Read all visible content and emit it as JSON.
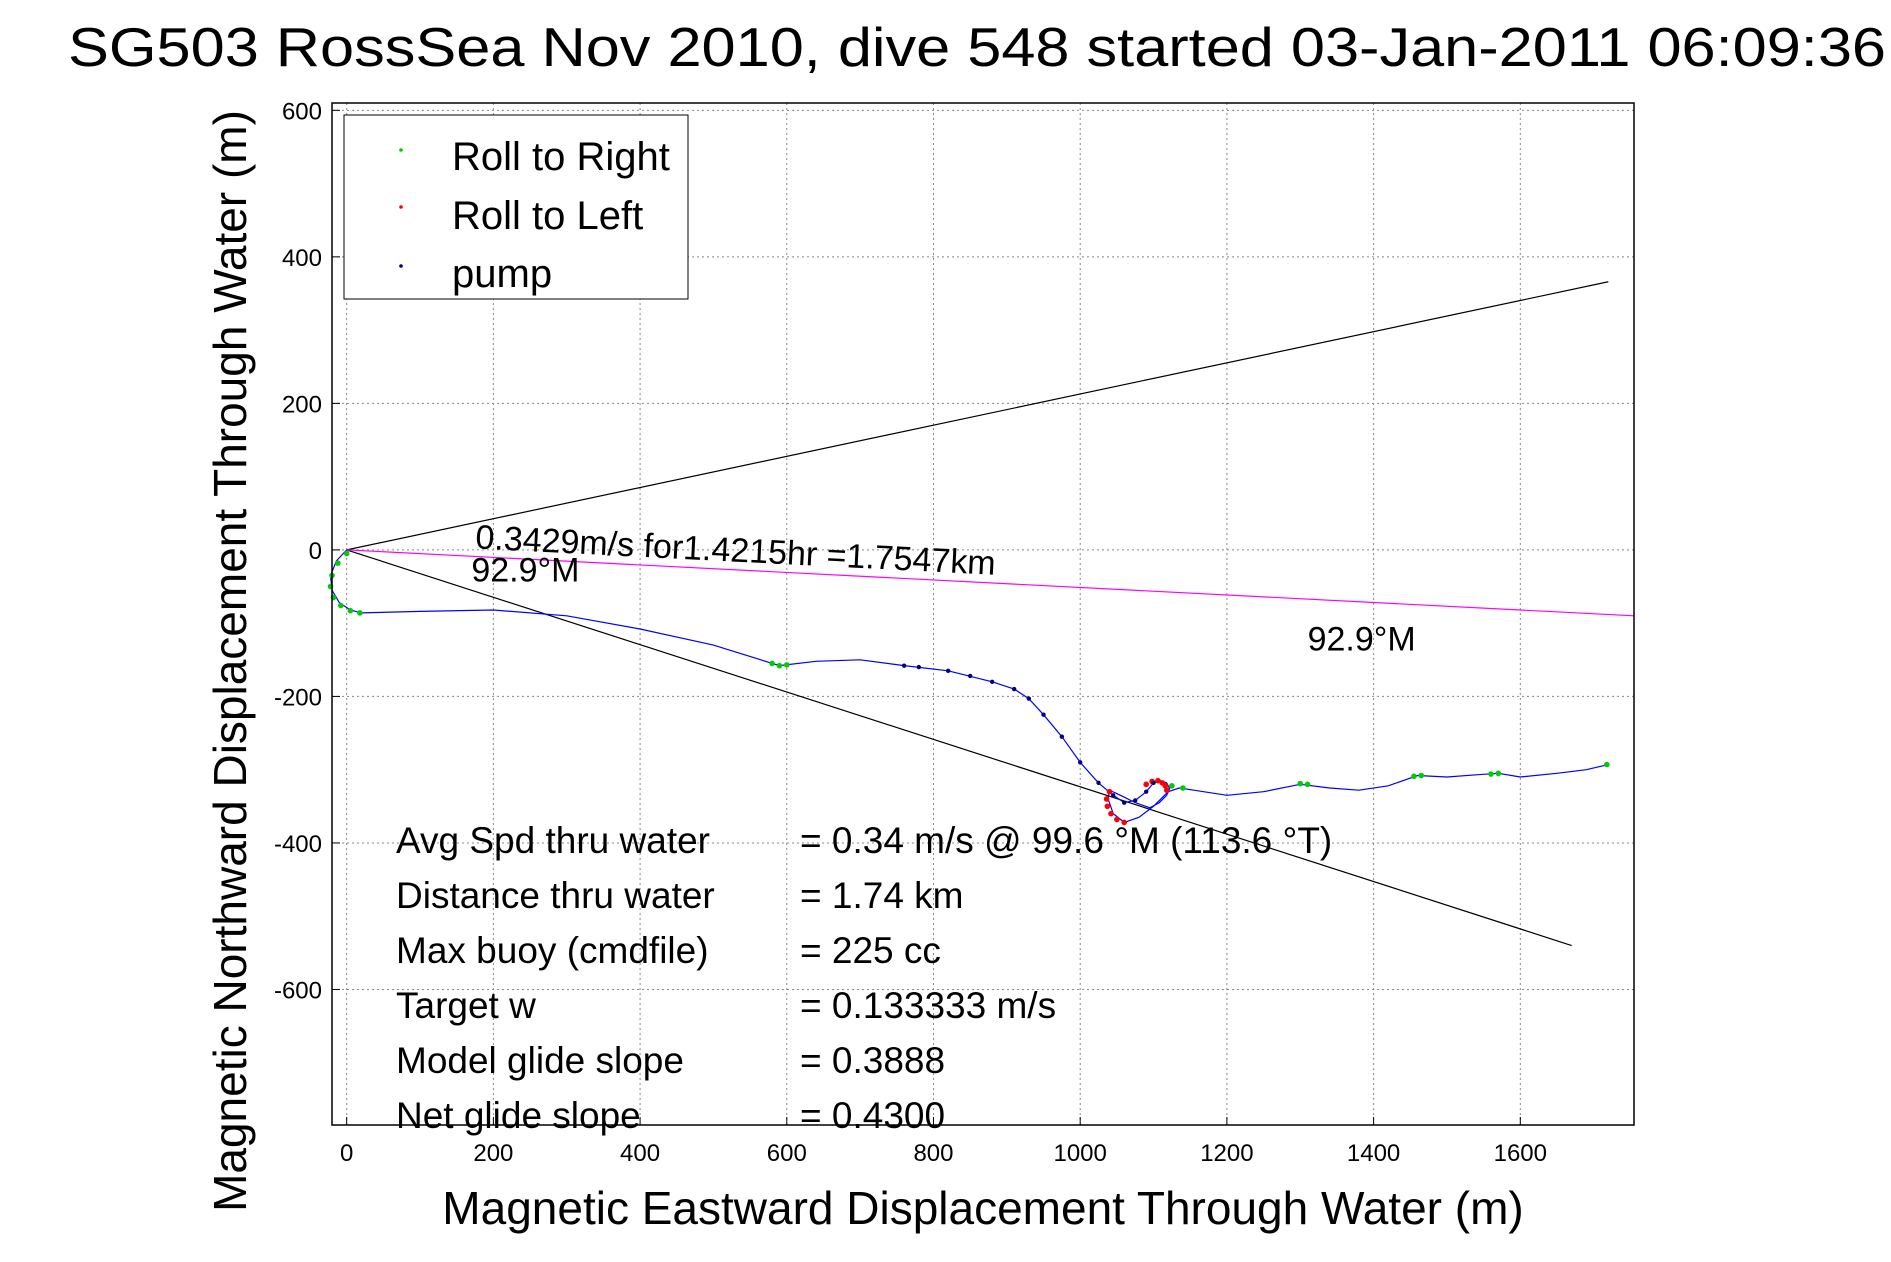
{
  "chart_data": {
    "type": "scatter",
    "title": "SG503 RossSea Nov 2010, dive 548 started 03-Jan-2011 06:09:36",
    "xlabel": "Magnetic Eastward Displacement Through Water (m)",
    "ylabel": "Magnetic Northward Displacement Through Water (m)",
    "xlim": [
      -20,
      1755
    ],
    "ylim": [
      -785,
      610
    ],
    "x_ticks": [
      0,
      200,
      400,
      600,
      800,
      1000,
      1200,
      1400,
      1600
    ],
    "y_ticks": [
      600,
      400,
      200,
      0,
      -200,
      -400,
      -600
    ],
    "grid": true,
    "legend": {
      "placement": "top-left",
      "entries": [
        {
          "label": "Roll to Right",
          "color": "#00cc00"
        },
        {
          "label": "Roll to Left",
          "color": "#ff0000"
        },
        {
          "label": "pump",
          "color": "#000080"
        }
      ]
    },
    "track": {
      "color": "#0000ff",
      "x": [
        0,
        -14,
        -22,
        -20,
        -10,
        5,
        20,
        100,
        200,
        300,
        400,
        500,
        590,
        640,
        700,
        760,
        820,
        880,
        910,
        930,
        950,
        975,
        1000,
        1025,
        1045,
        1060,
        1075,
        1090,
        1100,
        1110,
        1118,
        1122,
        1118,
        1108,
        1095,
        1075,
        1055,
        1040,
        1038,
        1045,
        1060,
        1080,
        1100,
        1120,
        1135,
        1155,
        1200,
        1250,
        1300,
        1340,
        1380,
        1420,
        1460,
        1500,
        1540,
        1570,
        1600,
        1650,
        1690,
        1720
      ],
      "y": [
        0,
        -15,
        -35,
        -55,
        -72,
        -82,
        -86,
        -84,
        -82,
        -90,
        -108,
        -130,
        -158,
        -152,
        -150,
        -158,
        -165,
        -180,
        -190,
        -203,
        -225,
        -255,
        -290,
        -318,
        -335,
        -345,
        -342,
        -330,
        -318,
        -315,
        -318,
        -326,
        -335,
        -345,
        -352,
        -345,
        -335,
        -328,
        -340,
        -360,
        -372,
        -365,
        -350,
        -330,
        -325,
        -328,
        -335,
        -330,
        -320,
        -325,
        -328,
        -322,
        -308,
        -310,
        -307,
        -305,
        -310,
        -305,
        -300,
        -293
      ]
    },
    "roll_right_points": {
      "color": "#00cc00",
      "x": [
        0,
        -12,
        -20,
        -22,
        -18,
        -8,
        5,
        18,
        580,
        590,
        600,
        1125,
        1140,
        1300,
        1310,
        1455,
        1465,
        1560,
        1570,
        1718
      ],
      "y": [
        -5,
        -18,
        -35,
        -50,
        -65,
        -76,
        -83,
        -86,
        -155,
        -158,
        -157,
        -322,
        -325,
        -319,
        -320,
        -309,
        -308,
        -306,
        -305,
        -293
      ]
    },
    "roll_left_points": {
      "color": "#ff0000",
      "x": [
        1040,
        1036,
        1037,
        1042,
        1050,
        1060,
        1090,
        1098,
        1106,
        1112,
        1116,
        1118
      ],
      "y": [
        -330,
        -340,
        -350,
        -360,
        -368,
        -372,
        -320,
        -316,
        -315,
        -318,
        -322,
        -328
      ],
      "note_color_secondary": "#800040"
    },
    "pump_points": {
      "color": "#000080",
      "x": [
        760,
        780,
        820,
        850,
        880,
        910,
        930,
        950,
        975,
        1000,
        1025,
        1045,
        1060,
        1075,
        1090,
        1100
      ],
      "y": [
        -158,
        -160,
        -165,
        -172,
        -180,
        -190,
        -203,
        -225,
        -255,
        -290,
        -318,
        -335,
        -345,
        -342,
        -330,
        -318
      ]
    },
    "lines": [
      {
        "color": "#000000",
        "x": [
          0,
          1720
        ],
        "y": [
          0,
          366
        ]
      },
      {
        "color": "#000000",
        "x": [
          0,
          1670
        ],
        "y": [
          0,
          -540
        ]
      },
      {
        "color": "#ff00ff",
        "x": [
          0,
          1755
        ],
        "y": [
          0,
          -90
        ]
      }
    ],
    "annotations": [
      {
        "id": "speed",
        "text": "0.3429m/s for1.4215hr =1.7547km",
        "x": 175,
        "y": 2,
        "rotate": 2.9
      },
      {
        "id": "heading1",
        "text": "92.9°M",
        "x": 170,
        "y": -43,
        "rotate": 0
      },
      {
        "id": "heading2",
        "text": "92.9°M",
        "x": 1310,
        "y": -137,
        "rotate": 0
      }
    ],
    "stats": [
      {
        "label": "Avg Spd thru water",
        "value": "=  0.34 m/s @  99.6 °M (113.6 °T)"
      },
      {
        "label": "Distance thru water",
        "value": "=  1.74 km"
      },
      {
        "label": "Max buoy (cmdfile)",
        "value": "= 225 cc"
      },
      {
        "label": "Target w",
        "value": "= 0.133333 m/s"
      },
      {
        "label": "Model glide slope",
        "value": "= 0.3888"
      },
      {
        "label": "Net glide slope",
        "value": "= 0.4300"
      }
    ]
  }
}
